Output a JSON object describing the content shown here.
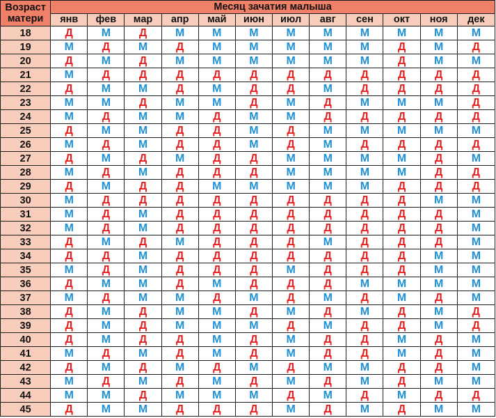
{
  "header": {
    "corner_line1": "Возраст",
    "corner_line2": "матери",
    "title": "Месяц зачатия малыша"
  },
  "months": [
    "янв",
    "фев",
    "мар",
    "апр",
    "май",
    "июн",
    "июл",
    "авг",
    "сен",
    "окт",
    "ноя",
    "дек"
  ],
  "labels": {
    "boy": "М",
    "girl": "Д"
  },
  "colors": {
    "boy": "#1f90d6",
    "girl": "#e52121",
    "title_bg": "#f08068",
    "header_bg": "#f9cdbb",
    "grid": "#1a1a1a"
  },
  "rows": [
    {
      "age": "18",
      "cells": [
        "Д",
        "М",
        "Д",
        "М",
        "М",
        "М",
        "М",
        "М",
        "М",
        "М",
        "М",
        "М"
      ]
    },
    {
      "age": "19",
      "cells": [
        "М",
        "Д",
        "М",
        "Д",
        "М",
        "М",
        "М",
        "М",
        "М",
        "Д",
        "М",
        "Д"
      ]
    },
    {
      "age": "20",
      "cells": [
        "Д",
        "М",
        "Д",
        "М",
        "М",
        "М",
        "М",
        "М",
        "М",
        "Д",
        "М",
        "М"
      ]
    },
    {
      "age": "21",
      "cells": [
        "М",
        "Д",
        "Д",
        "Д",
        "Д",
        "Д",
        "Д",
        "Д",
        "Д",
        "Д",
        "Д",
        "Д"
      ]
    },
    {
      "age": "22",
      "cells": [
        "Д",
        "М",
        "М",
        "Д",
        "М",
        "Д",
        "Д",
        "М",
        "Д",
        "Д",
        "Д",
        "Д"
      ]
    },
    {
      "age": "23",
      "cells": [
        "М",
        "М",
        "Д",
        "М",
        "М",
        "Д",
        "М",
        "Д",
        "М",
        "М",
        "М",
        "Д"
      ]
    },
    {
      "age": "24",
      "cells": [
        "М",
        "Д",
        "М",
        "М",
        "Д",
        "М",
        "М",
        "Д",
        "Д",
        "Д",
        "Д",
        "Д"
      ]
    },
    {
      "age": "25",
      "cells": [
        "Д",
        "М",
        "М",
        "Д",
        "Д",
        "М",
        "Д",
        "М",
        "М",
        "М",
        "М",
        "М"
      ]
    },
    {
      "age": "26",
      "cells": [
        "М",
        "Д",
        "М",
        "Д",
        "Д",
        "М",
        "Д",
        "М",
        "Д",
        "Д",
        "Д",
        "Д"
      ]
    },
    {
      "age": "27",
      "cells": [
        "Д",
        "М",
        "Д",
        "М",
        "Д",
        "Д",
        "М",
        "М",
        "М",
        "М",
        "Д",
        "М"
      ]
    },
    {
      "age": "28",
      "cells": [
        "М",
        "Д",
        "М",
        "Д",
        "Д",
        "Д",
        "М",
        "М",
        "М",
        "М",
        "Д",
        "Д"
      ]
    },
    {
      "age": "29",
      "cells": [
        "Д",
        "М",
        "Д",
        "Д",
        "М",
        "М",
        "М",
        "М",
        "М",
        "Д",
        "Д",
        "Д"
      ]
    },
    {
      "age": "30",
      "cells": [
        "М",
        "Д",
        "Д",
        "Д",
        "Д",
        "Д",
        "Д",
        "Д",
        "Д",
        "Д",
        "М",
        "М"
      ]
    },
    {
      "age": "31",
      "cells": [
        "М",
        "Д",
        "М",
        "Д",
        "Д",
        "Д",
        "Д",
        "Д",
        "Д",
        "Д",
        "Д",
        "М"
      ]
    },
    {
      "age": "32",
      "cells": [
        "М",
        "Д",
        "М",
        "Д",
        "Д",
        "Д",
        "Д",
        "Д",
        "Д",
        "Д",
        "Д",
        "М"
      ]
    },
    {
      "age": "33",
      "cells": [
        "Д",
        "М",
        "Д",
        "М",
        "Д",
        "Д",
        "Д",
        "М",
        "Д",
        "Д",
        "Д",
        "М"
      ]
    },
    {
      "age": "34",
      "cells": [
        "Д",
        "Д",
        "М",
        "Д",
        "Д",
        "Д",
        "Д",
        "Д",
        "Д",
        "Д",
        "М",
        "М"
      ]
    },
    {
      "age": "35",
      "cells": [
        "М",
        "Д",
        "М",
        "Д",
        "Д",
        "Д",
        "М",
        "Д",
        "Д",
        "Д",
        "М",
        "М"
      ]
    },
    {
      "age": "36",
      "cells": [
        "Д",
        "М",
        "М",
        "Д",
        "М",
        "Д",
        "Д",
        "Д",
        "М",
        "М",
        "М",
        "М"
      ]
    },
    {
      "age": "37",
      "cells": [
        "М",
        "Д",
        "М",
        "М",
        "Д",
        "М",
        "Д",
        "М",
        "Д",
        "М",
        "Д",
        "М"
      ]
    },
    {
      "age": "38",
      "cells": [
        "Д",
        "М",
        "Д",
        "М",
        "М",
        "Д",
        "М",
        "Д",
        "М",
        "Д",
        "М",
        "Д"
      ]
    },
    {
      "age": "39",
      "cells": [
        "Д",
        "М",
        "Д",
        "М",
        "М",
        "М",
        "Д",
        "М",
        "Д",
        "Д",
        "М",
        "Д"
      ]
    },
    {
      "age": "40",
      "cells": [
        "Д",
        "М",
        "Д",
        "Д",
        "М",
        "Д",
        "М",
        "Д",
        "Д",
        "М",
        "Д",
        "М"
      ]
    },
    {
      "age": "41",
      "cells": [
        "М",
        "Д",
        "М",
        "Д",
        "М",
        "Д",
        "М",
        "Д",
        "Д",
        "М",
        "Д",
        "М"
      ]
    },
    {
      "age": "42",
      "cells": [
        "Д",
        "М",
        "Д",
        "М",
        "Д",
        "М",
        "Д",
        "М",
        "М",
        "Д",
        "Д",
        "М"
      ]
    },
    {
      "age": "43",
      "cells": [
        "М",
        "Д",
        "М",
        "Д",
        "М",
        "Д",
        "М",
        "Д",
        "М",
        "Д",
        "М",
        "М"
      ]
    },
    {
      "age": "44",
      "cells": [
        "М",
        "М",
        "Д",
        "М",
        "М",
        "М",
        "Д",
        "М",
        "Д",
        "М",
        "Д",
        "Д"
      ]
    },
    {
      "age": "45",
      "cells": [
        "Д",
        "М",
        "М",
        "Д",
        "Д",
        "Д",
        "М",
        "Д",
        "М",
        "Д",
        "М",
        "М"
      ]
    }
  ]
}
